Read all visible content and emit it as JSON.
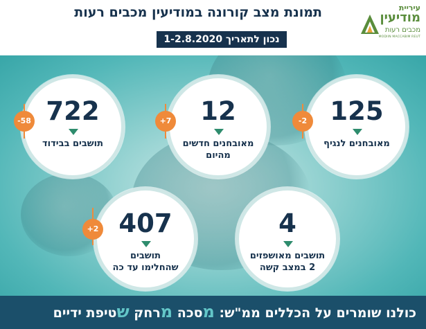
{
  "header": {
    "title": "תמונת מצב קורונה במודיעין מכבים רעות",
    "date": "נכון לתאריך 1-2.8.2020"
  },
  "logo": {
    "line1": "עיריית",
    "line2": "מודיעין",
    "line3": "מכבים רעות",
    "line4": "MODIIN MACCABIM REUT"
  },
  "stats": {
    "active": {
      "value": "125",
      "label": "מאובחנים לנגיף",
      "change": "-2"
    },
    "new_cases": {
      "value": "12",
      "label_line1": "מאובחנים חדשים",
      "label_line2": "מהיום",
      "change": "+7"
    },
    "isolation": {
      "value": "722",
      "label": "תושבים בבידוד",
      "change": "-58"
    },
    "hospitalized": {
      "value": "4",
      "label_line1": "תושבים מאושפזים",
      "label_line2": "2 במצב קשה"
    },
    "recovered": {
      "value": "407",
      "label_line1": "תושבים",
      "label_line2": "שהחלימו עד כה",
      "change": "+2"
    }
  },
  "footer": {
    "intro": "כולנו שומרים על הכללים ממ\"ש:",
    "m1": "מ",
    "w1": "סכה",
    "m2": "מ",
    "w2": "רחק",
    "s": "ש",
    "w3": "טיפת ידיים"
  },
  "colors": {
    "navy": "#17324d",
    "teal": "#52b7b8",
    "orange": "#ef8a3a",
    "green_marker": "#2e8c6d",
    "footer_bg": "#1b4f6a"
  }
}
